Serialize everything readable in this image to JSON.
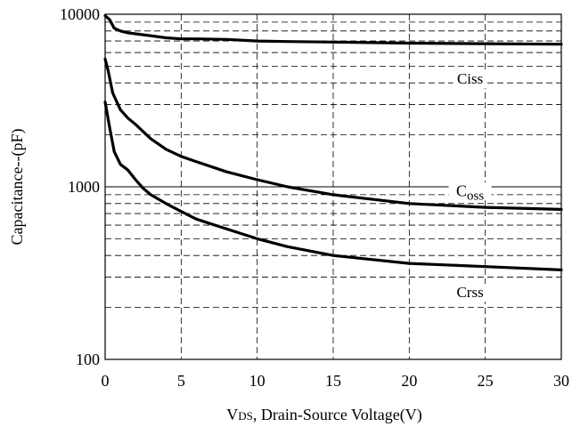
{
  "chart_data": {
    "type": "line",
    "title": "",
    "xlabel": "VDS, Drain-Source Voltage(V)",
    "xlabel_parts": {
      "main": "V",
      "sub": "DS",
      "rest": ", Drain-Source Voltage(V)"
    },
    "ylabel": "Capacitance--(pF)",
    "xlim": [
      0,
      30
    ],
    "ylim": [
      100,
      10000
    ],
    "y_scale": "log",
    "grid": true,
    "x_ticks": [
      0,
      5,
      10,
      15,
      20,
      25,
      30
    ],
    "x_tick_labels": [
      "0",
      "5",
      "10",
      "15",
      "20",
      "25",
      "30"
    ],
    "y_ticks": [
      100,
      1000,
      10000
    ],
    "y_tick_labels": [
      "100",
      "1000",
      "10000"
    ],
    "series": [
      {
        "name": "Ciss",
        "label_parts": {
          "main": "Ciss",
          "sub": ""
        },
        "x": [
          0,
          0.3,
          0.6,
          1,
          1.5,
          2,
          3,
          4,
          5,
          6,
          8,
          10,
          12,
          15,
          20,
          25,
          30
        ],
        "y": [
          9800,
          9300,
          8300,
          8000,
          7800,
          7700,
          7500,
          7300,
          7200,
          7200,
          7150,
          7000,
          6950,
          6900,
          6800,
          6750,
          6700
        ]
      },
      {
        "name": "Coss",
        "label_parts": {
          "main": "C",
          "sub": "oss"
        },
        "x": [
          0,
          0.2,
          0.5,
          1,
          1.5,
          2,
          3,
          4,
          5,
          6,
          8,
          10,
          12,
          15,
          20,
          25,
          30
        ],
        "y": [
          5500,
          4700,
          3500,
          2800,
          2500,
          2300,
          1900,
          1650,
          1500,
          1400,
          1220,
          1100,
          1000,
          900,
          800,
          760,
          740
        ]
      },
      {
        "name": "Crss",
        "label_parts": {
          "main": "Crss",
          "sub": ""
        },
        "x": [
          0,
          0.3,
          0.6,
          1,
          1.5,
          2,
          2.5,
          3,
          4,
          5,
          6,
          8,
          10,
          12,
          15,
          20,
          25,
          30
        ],
        "y": [
          3100,
          2200,
          1600,
          1350,
          1250,
          1100,
          980,
          900,
          800,
          720,
          650,
          570,
          500,
          450,
          400,
          360,
          345,
          330
        ]
      }
    ]
  }
}
